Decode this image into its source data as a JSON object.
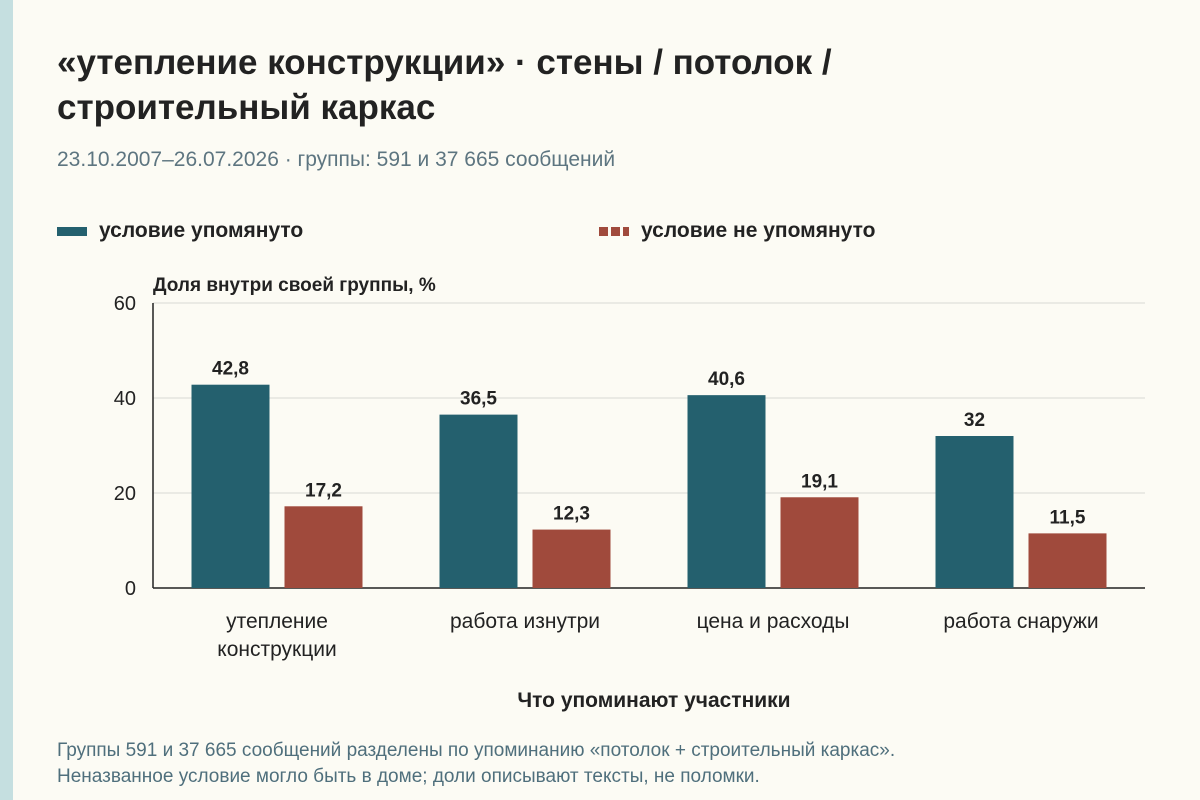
{
  "title_line1": "«утепление конструкции» · стены / потолок /",
  "title_line2": "строительный каркас",
  "subtitle": "23.10.2007–26.07.2026 · группы: 591 и 37 665 сообщений",
  "legend": [
    {
      "label": "условие упомянуто",
      "color": "#24606e",
      "style": "solid"
    },
    {
      "label": "условие не упомянуто",
      "color": "#a04a3c",
      "style": "dashed"
    }
  ],
  "footnote_line1": "Группы 591 и 37 665 сообщений разделены по упоминанию «потолок + строительный каркас».",
  "footnote_line2": "Неназванное условие могло быть в доме; доли описывают тексты, не поломки.",
  "chart_data": {
    "type": "bar",
    "ylabel": "Доля внутри своей группы, %",
    "xlabel": "Что упоминают участники",
    "ylim": [
      0,
      60
    ],
    "yticks": [
      0,
      20,
      40,
      60
    ],
    "grid": true,
    "legend_position": "top",
    "categories": [
      [
        "утепление",
        "конструкции"
      ],
      [
        "работа изнутри"
      ],
      [
        "цена и расходы"
      ],
      [
        "работа снаружи"
      ]
    ],
    "series": [
      {
        "name": "условие упомянуто",
        "color": "#24606e",
        "values": [
          42.8,
          36.5,
          40.6,
          32
        ],
        "labels": [
          "42,8",
          "36,5",
          "40,6",
          "32"
        ]
      },
      {
        "name": "условие не упомянуто",
        "color": "#a04a3c",
        "values": [
          17.2,
          12.3,
          19.1,
          11.5
        ],
        "labels": [
          "17,2",
          "12,3",
          "19,1",
          "11,5"
        ]
      }
    ]
  }
}
